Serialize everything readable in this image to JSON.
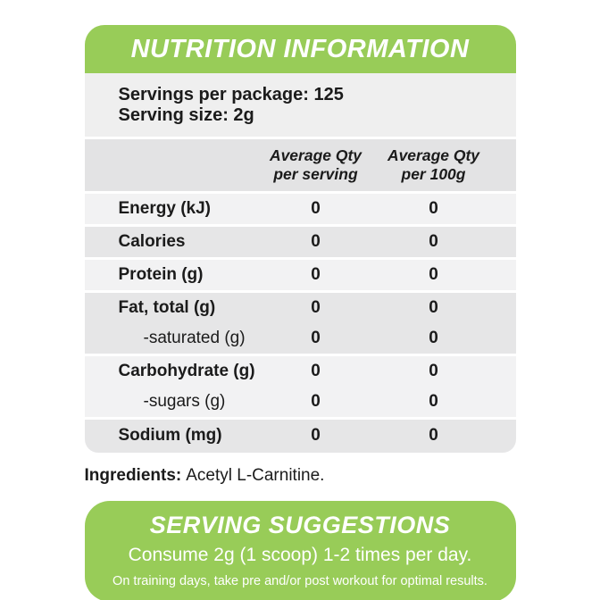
{
  "header": {
    "title": "NUTRITION INFORMATION"
  },
  "servings": {
    "line1": "Servings per package: 125",
    "line2": "Serving size: 2g"
  },
  "table": {
    "columns": [
      {
        "line1": "Average Qty",
        "line2": "per serving"
      },
      {
        "line1": "Average Qty",
        "line2": "per 100g"
      }
    ],
    "rows": [
      {
        "label": "Energy (kJ)",
        "per_serving": "0",
        "per_100g": "0"
      },
      {
        "label": "Calories",
        "per_serving": "0",
        "per_100g": "0"
      },
      {
        "label": "Protein (g)",
        "per_serving": "0",
        "per_100g": "0"
      },
      {
        "label": "Fat, total (g)",
        "per_serving": "0",
        "per_100g": "0"
      },
      {
        "label": "-saturated (g)",
        "per_serving": "0",
        "per_100g": "0"
      },
      {
        "label": "Carbohydrate (g)",
        "per_serving": "0",
        "per_100g": "0"
      },
      {
        "label": "-sugars (g)",
        "per_serving": "0",
        "per_100g": "0"
      },
      {
        "label": "Sodium (mg)",
        "per_serving": "0",
        "per_100g": "0"
      }
    ]
  },
  "ingredients": {
    "label": "Ingredients:",
    "value": "Acetyl L-Carnitine."
  },
  "suggestions": {
    "title": "SERVING SUGGESTIONS",
    "line1": "Consume 2g (1 scoop) 1-2 times per day.",
    "line2": "On training days, take pre and/or post workout for optimal results."
  },
  "colors": {
    "brand_green": "#98CC58",
    "servings_bg": "#EFEFEF",
    "table_header_bg": "#E3E3E4",
    "row_light": "#F2F2F3",
    "row_dark": "#E6E6E7",
    "text": "#1B1B1B",
    "header_text": "#FFFFFF"
  }
}
